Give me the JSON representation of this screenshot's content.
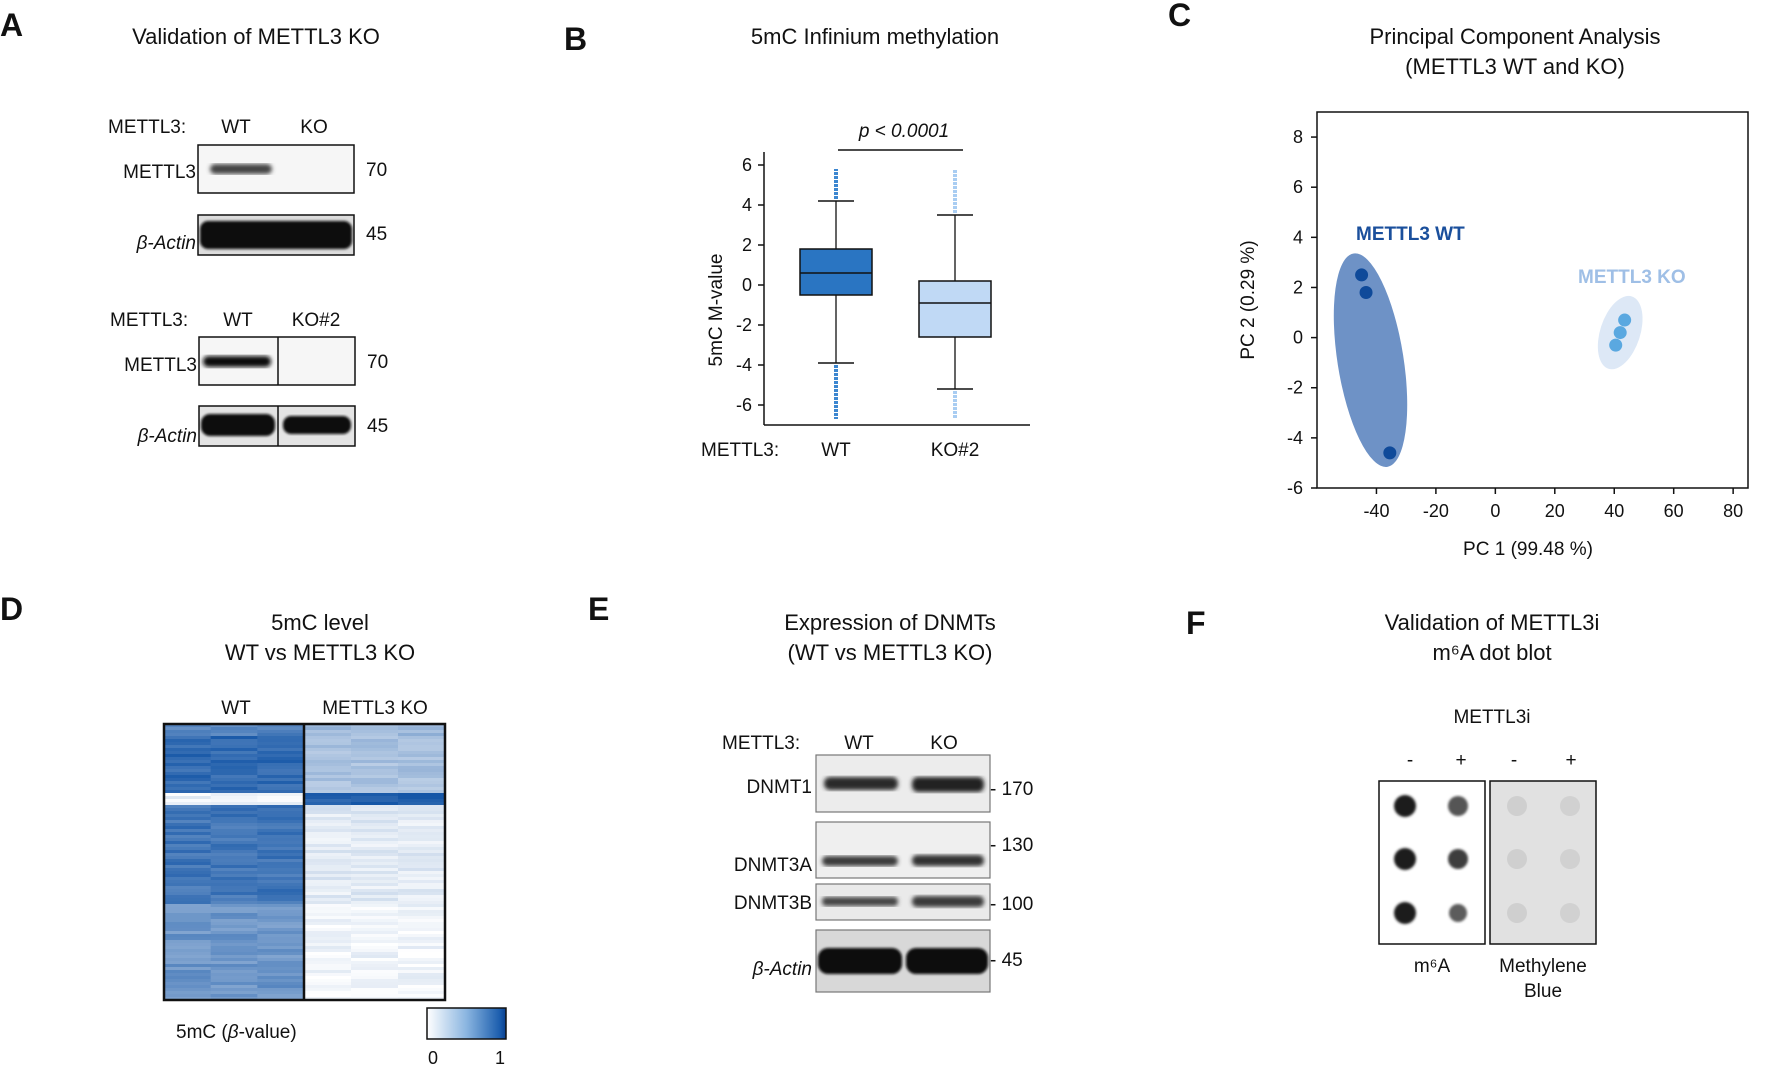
{
  "panels": {
    "A": {
      "letter": "A",
      "title": "Validation of METTL3 KO",
      "blot1": {
        "condition_label": "METTL3:",
        "lanes": [
          "WT",
          "KO"
        ],
        "rows": [
          {
            "name": "METTL3",
            "mw": "70"
          },
          {
            "name": "β-Actin",
            "mw": "45"
          }
        ]
      },
      "blot2": {
        "condition_label": "METTL3:",
        "lanes": [
          "WT",
          "KO#2"
        ],
        "rows": [
          {
            "name": "METTL3",
            "mw": "70"
          },
          {
            "name": "β-Actin",
            "mw": "45"
          }
        ]
      }
    },
    "B": {
      "letter": "B",
      "title": "5mC Infinium methylation",
      "pvalue": "p < 0.0001",
      "condition_label": "METTL3:"
    },
    "C": {
      "letter": "C",
      "title_line1": "Principal Component Analysis",
      "title_line2": "(METTL3 WT and KO)",
      "label_wt": "METTL3 WT",
      "label_ko": "METTL3 KO"
    },
    "D": {
      "letter": "D",
      "title_line1": "5mC level",
      "title_line2": "WT vs METTL3 KO",
      "col_wt": "WT",
      "col_ko": "METTL3 KO",
      "legend_label": "5mC (β-value)",
      "legend_min": "0",
      "legend_max": "1"
    },
    "E": {
      "letter": "E",
      "title_line1": "Expression of DNMTs",
      "title_line2": "(WT vs METTL3 KO)",
      "condition_label": "METTL3:",
      "lanes": [
        "WT",
        "KO"
      ],
      "rows": [
        {
          "name": "DNMT1",
          "mw": "170"
        },
        {
          "name": "DNMT3A",
          "mw": "130"
        },
        {
          "name": "DNMT3B",
          "mw": "100"
        },
        {
          "name": "β-Actin",
          "mw": "45"
        }
      ]
    },
    "F": {
      "letter": "F",
      "title_line1": "Validation of METTL3i",
      "title_line2": "m⁶A dot blot",
      "treatment": "METTL3i",
      "signs": [
        "-",
        "+",
        "-",
        "+"
      ],
      "label_m6a": "m⁶A",
      "label_mb_line1": "Methylene",
      "label_mb_line2": "Blue"
    }
  },
  "chart_data": [
    {
      "type": "box",
      "ylabel": "5mC M-value",
      "ylim": [
        -7,
        7
      ],
      "yticks": [
        -6,
        -4,
        -2,
        0,
        2,
        4,
        6
      ],
      "categories": [
        "WT",
        "KO#2"
      ],
      "colors": [
        "#2a75c2",
        "#c0d9f5"
      ],
      "boxes": [
        {
          "category": "WT",
          "whisker_low": -3.9,
          "q1": -0.5,
          "median": 0.6,
          "q3": 1.8,
          "whisker_high": 4.2
        },
        {
          "category": "KO#2",
          "whisker_low": -5.2,
          "q1": -2.6,
          "median": -0.9,
          "q3": 0.2,
          "whisker_high": 3.5
        }
      ]
    },
    {
      "type": "scatter",
      "xlabel": "PC 1 (99.48 %)",
      "ylabel": "PC 2 (0.29 %)",
      "xlim": [
        -60,
        85
      ],
      "ylim": [
        -6,
        9
      ],
      "xticks": [
        -40,
        -20,
        0,
        20,
        40,
        60,
        80
      ],
      "yticks": [
        -6,
        -4,
        -2,
        0,
        2,
        4,
        6,
        8
      ],
      "series": [
        {
          "name": "METTL3 WT",
          "color": "#0f4a9a",
          "ellipse_color": "#5e86c0",
          "points": [
            [
              -45,
              2.5
            ],
            [
              -43.5,
              1.8
            ],
            [
              -35.5,
              -4.6
            ]
          ]
        },
        {
          "name": "METTL3 KO",
          "color": "#5aa8e0",
          "ellipse_color": "#dde8f6",
          "points": [
            [
              43.5,
              0.7
            ],
            [
              42,
              0.2
            ],
            [
              40.5,
              -0.3
            ]
          ]
        }
      ]
    },
    {
      "type": "heatmap",
      "columns": [
        "WT",
        "METTL3 KO"
      ],
      "value_range": [
        0,
        1
      ],
      "colors": [
        "#ffffff",
        "#0b4fa3"
      ]
    }
  ]
}
